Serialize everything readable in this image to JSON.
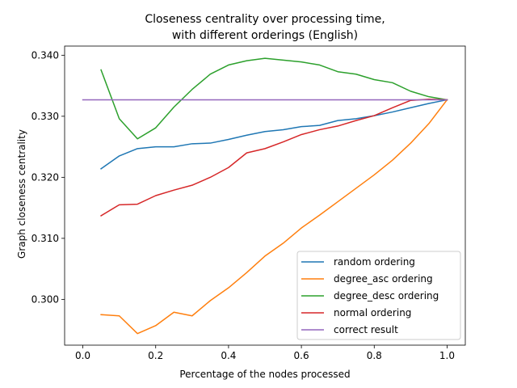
{
  "chart_data": {
    "type": "line",
    "title": [
      "Closeness centrality over processing time,",
      "with different orderings (English)"
    ],
    "xlabel": "Percentage of the nodes processed",
    "ylabel": "Graph closeness centrality",
    "xlim": [
      -0.05,
      1.05
    ],
    "ylim": [
      0.2925,
      0.3415
    ],
    "xticks": [
      0.0,
      0.2,
      0.4,
      0.6,
      0.8,
      1.0
    ],
    "xtick_labels": [
      "0.0",
      "0.2",
      "0.4",
      "0.6",
      "0.8",
      "1.0"
    ],
    "yticks": [
      0.3,
      0.31,
      0.32,
      0.33,
      0.34
    ],
    "ytick_labels": [
      "0.300",
      "0.310",
      "0.320",
      "0.330",
      "0.340"
    ],
    "grid": false,
    "legend_position": "lower-right",
    "x": [
      0.05,
      0.1,
      0.15,
      0.2,
      0.25,
      0.3,
      0.35,
      0.4,
      0.45,
      0.5,
      0.55,
      0.6,
      0.65,
      0.7,
      0.75,
      0.8,
      0.85,
      0.9,
      0.95,
      1.0
    ],
    "series": [
      {
        "name": "random ordering",
        "color": "#1f77b4",
        "values": [
          0.3214,
          0.3235,
          0.3247,
          0.325,
          0.325,
          0.3255,
          0.3256,
          0.3262,
          0.3269,
          0.3275,
          0.3278,
          0.3283,
          0.3285,
          0.3293,
          0.3296,
          0.3301,
          0.3307,
          0.3314,
          0.3321,
          0.3327
        ]
      },
      {
        "name": "degree_asc ordering",
        "color": "#ff7f0e",
        "values": [
          0.2975,
          0.2973,
          0.2944,
          0.2957,
          0.2979,
          0.2973,
          0.2998,
          0.3019,
          0.3044,
          0.3071,
          0.3092,
          0.3117,
          0.3138,
          0.316,
          0.3182,
          0.3204,
          0.3228,
          0.3256,
          0.3288,
          0.3327
        ]
      },
      {
        "name": "degree_desc ordering",
        "color": "#2ca02c",
        "values": [
          0.3376,
          0.3296,
          0.3263,
          0.3281,
          0.3315,
          0.3344,
          0.3369,
          0.3384,
          0.3391,
          0.3395,
          0.3392,
          0.3389,
          0.3384,
          0.3373,
          0.3369,
          0.336,
          0.3355,
          0.3341,
          0.3332,
          0.3327
        ]
      },
      {
        "name": "normal ordering",
        "color": "#d62728",
        "values": [
          0.3137,
          0.3155,
          0.3156,
          0.317,
          0.3179,
          0.3187,
          0.32,
          0.3216,
          0.324,
          0.3247,
          0.3258,
          0.327,
          0.3278,
          0.3284,
          0.3293,
          0.3301,
          0.3314,
          0.3326,
          0.3328,
          0.3327
        ]
      },
      {
        "name": "correct result",
        "color": "#9467bd",
        "x": [
          0.0,
          1.0
        ],
        "values": [
          0.3327,
          0.3327
        ]
      }
    ]
  }
}
